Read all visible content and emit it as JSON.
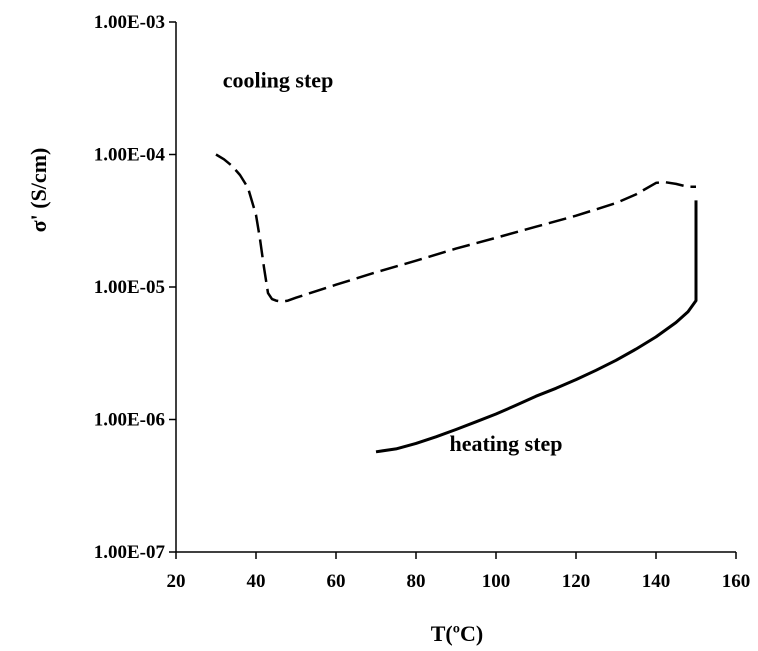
{
  "chart_data": {
    "type": "line",
    "xlabel": "T(ºC)",
    "ylabel": "σ' (S/cm)",
    "xlim": [
      20,
      160
    ],
    "ylim": [
      1e-07,
      0.001
    ],
    "yscale": "log",
    "grid": false,
    "x_ticks": [
      20,
      40,
      60,
      80,
      100,
      120,
      140,
      160
    ],
    "x_tick_labels": [
      "20",
      "40",
      "60",
      "80",
      "100",
      "120",
      "140",
      "160"
    ],
    "y_ticks": [
      1e-07,
      1e-06,
      1e-05,
      0.0001,
      0.001
    ],
    "y_tick_labels": [
      "1.00E-07",
      "1.00E-06",
      "1.00E-05",
      "1.00E-04",
      "1.00E-03"
    ],
    "annotations": [
      {
        "text": "cooling step",
        "x": 45.5,
        "y": 0.00032
      },
      {
        "text": "heating step",
        "x": 102.5,
        "y": 5.8e-07
      }
    ],
    "series": [
      {
        "style": "dashed",
        "x": [
          30,
          32,
          34,
          36,
          38,
          40,
          41,
          42,
          43,
          44,
          45,
          46,
          47,
          48,
          50,
          55,
          60,
          70,
          80,
          90,
          100,
          110,
          120,
          130,
          135,
          140,
          142,
          145,
          148,
          150
        ],
        "y": [
          0.0001,
          9.2e-05,
          8.2e-05,
          7e-05,
          5.6e-05,
          3.5e-05,
          2.3e-05,
          1.4e-05,
          9e-06,
          8.1e-06,
          7.9e-06,
          7.8e-06,
          7.8e-06,
          7.9e-06,
          8.3e-06,
          9.3e-06,
          1.04e-05,
          1.29e-05,
          1.58e-05,
          1.95e-05,
          2.35e-05,
          2.85e-05,
          3.45e-05,
          4.3e-05,
          5e-05,
          6.1e-05,
          6.2e-05,
          6e-05,
          5.7e-05,
          5.7e-05
        ]
      },
      {
        "style": "solid",
        "x": [
          70,
          75,
          80,
          85,
          90,
          95,
          100,
          105,
          110,
          115,
          120,
          125,
          130,
          135,
          140,
          145,
          148,
          150,
          150
        ],
        "y": [
          5.7e-07,
          6e-07,
          6.6e-07,
          7.4e-07,
          8.4e-07,
          9.6e-07,
          1.1e-06,
          1.28e-06,
          1.5e-06,
          1.72e-06,
          2e-06,
          2.35e-06,
          2.8e-06,
          3.4e-06,
          4.2e-06,
          5.4e-06,
          6.5e-06,
          7.9e-06,
          4.5e-05
        ]
      }
    ]
  }
}
